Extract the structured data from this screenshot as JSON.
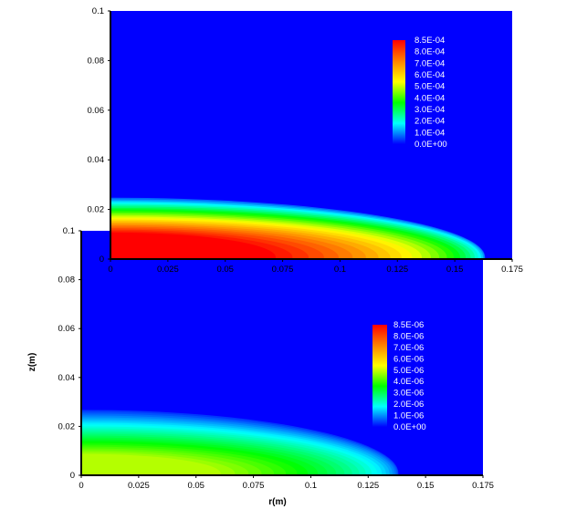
{
  "chart_data": [
    {
      "type": "heatmap",
      "title": "",
      "xlabel": "",
      "ylabel": "",
      "xlim": [
        0,
        0.175
      ],
      "ylim": [
        0,
        0.1
      ],
      "x_ticks": [
        0,
        0.025,
        0.05,
        0.075,
        0.1,
        0.125,
        0.15,
        0.175
      ],
      "y_ticks": [
        0,
        0.02,
        0.04,
        0.06,
        0.08,
        0.1
      ],
      "x_tick_labels": [
        "0",
        "0.025",
        "0.05",
        "0.075",
        "0.1",
        "0.125",
        "0.15",
        "0.175"
      ],
      "y_tick_labels": [
        "0",
        "0.02",
        "0.04",
        "0.06",
        "0.08",
        "0.1"
      ],
      "legend": {
        "placement": "top-right",
        "labels": [
          "8.5E-04",
          "8.0E-04",
          "7.0E-04",
          "6.0E-04",
          "5.0E-04",
          "4.0E-04",
          "3.0E-04",
          "2.0E-04",
          "1.0E-04",
          "0.0E+00"
        ],
        "max": 0.00085
      },
      "field": {
        "peak_value": 0.00085,
        "radial_extent_r": 0.16,
        "core_thickness_z": 0.01,
        "outer_thickness_z": 0.024
      },
      "grid": false
    },
    {
      "type": "heatmap",
      "title": "",
      "xlabel": "r(m)",
      "ylabel": "z(m)",
      "xlim": [
        0,
        0.175
      ],
      "ylim": [
        0,
        0.1
      ],
      "x_ticks": [
        0,
        0.025,
        0.05,
        0.075,
        0.1,
        0.125,
        0.15,
        0.175
      ],
      "y_ticks": [
        0,
        0.02,
        0.04,
        0.06,
        0.08,
        0.1
      ],
      "x_tick_labels": [
        "0",
        "0.025",
        "0.05",
        "0.075",
        "0.1",
        "0.125",
        "0.15",
        "0.175"
      ],
      "y_tick_labels": [
        "0",
        "0.02",
        "0.04",
        "0.06",
        "0.08",
        "0.1"
      ],
      "legend": {
        "placement": "top-right",
        "labels": [
          "8.5E-06",
          "8.0E-06",
          "7.0E-06",
          "6.0E-06",
          "5.0E-06",
          "4.0E-06",
          "3.0E-06",
          "2.0E-06",
          "1.0E-06",
          "0.0E+00"
        ],
        "max": 8.5e-06
      },
      "field": {
        "peak_value": 4.6e-06,
        "radial_extent_r": 0.135,
        "core_thickness_z": 0.008,
        "outer_thickness_z": 0.026
      },
      "grid": false
    }
  ],
  "colors": {
    "background": "#0000ff",
    "colormap": [
      "#0000ff",
      "#00ffff",
      "#00ff00",
      "#ffff00",
      "#ff8000",
      "#ff0000"
    ]
  }
}
